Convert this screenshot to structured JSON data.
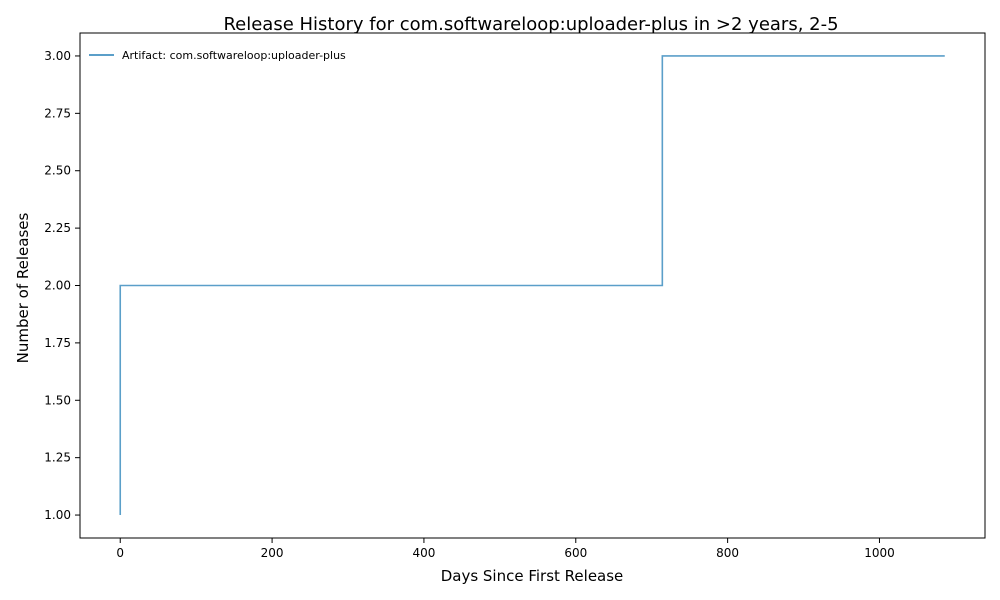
{
  "chart_data": {
    "type": "line",
    "step": "post",
    "title": "Release History for com.softwareloop:uploader-plus in >2 years, 2-5",
    "xlabel": "Days Since First Release",
    "ylabel": "Number of Releases",
    "xlim": [
      -53,
      1139
    ],
    "ylim": [
      0.9,
      3.1
    ],
    "xticks": [
      0,
      200,
      400,
      600,
      800,
      1000
    ],
    "yticks": [
      1.0,
      1.25,
      1.5,
      1.75,
      2.0,
      2.25,
      2.5,
      2.75,
      3.0
    ],
    "xtick_labels": [
      "0",
      "200",
      "400",
      "600",
      "800",
      "1000"
    ],
    "ytick_labels": [
      "1.00",
      "1.25",
      "1.50",
      "1.75",
      "2.00",
      "2.25",
      "2.50",
      "2.75",
      "3.00"
    ],
    "grid": false,
    "legend_position": "top-left",
    "series": [
      {
        "name": "Artifact: com.softwareloop:uploader-plus",
        "color": "#5b9fc9",
        "x": [
          0,
          0,
          714,
          1086
        ],
        "y": [
          1,
          2,
          3,
          3
        ]
      }
    ]
  }
}
